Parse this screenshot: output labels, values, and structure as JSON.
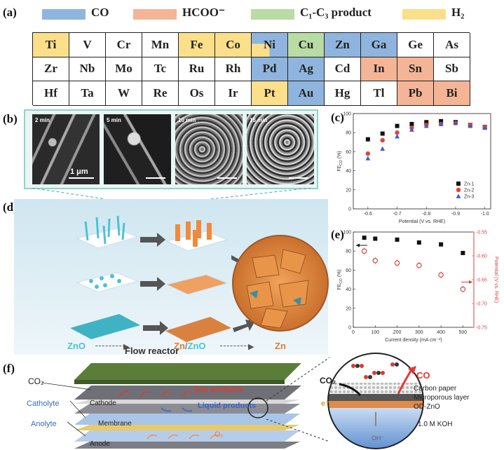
{
  "panels": {
    "a": "(a)",
    "b": "(b)",
    "c": "(c)",
    "d": "(d)",
    "e": "(e)",
    "f": "(f)"
  },
  "legend": [
    {
      "label": "CO",
      "color": "#8fb5de"
    },
    {
      "label": "HCOO⁻",
      "color": "#f4b596"
    },
    {
      "label": "C₁-C₃ product",
      "color": "#b9dba4"
    },
    {
      "label": "H₂",
      "color": "#fbdf8b"
    }
  ],
  "periodic_table": {
    "rows": [
      [
        {
          "el": "Ti",
          "c": "h2"
        },
        {
          "el": "V",
          "c": ""
        },
        {
          "el": "Cr",
          "c": ""
        },
        {
          "el": "Mn",
          "c": ""
        },
        {
          "el": "Fe",
          "c": "h2"
        },
        {
          "el": "Co",
          "c": "h2"
        },
        {
          "el": "Ni",
          "c": "co_h2"
        },
        {
          "el": "Cu",
          "c": "c1c3"
        },
        {
          "el": "Zn",
          "c": "co"
        },
        {
          "el": "Ga",
          "c": "co"
        },
        {
          "el": "Ge",
          "c": ""
        },
        {
          "el": "As",
          "c": ""
        }
      ],
      [
        {
          "el": "Zr",
          "c": ""
        },
        {
          "el": "Nb",
          "c": ""
        },
        {
          "el": "Mo",
          "c": ""
        },
        {
          "el": "Tc",
          "c": ""
        },
        {
          "el": "Ru",
          "c": ""
        },
        {
          "el": "Rh",
          "c": ""
        },
        {
          "el": "Pd",
          "c": "co"
        },
        {
          "el": "Ag",
          "c": "co"
        },
        {
          "el": "Cd",
          "c": ""
        },
        {
          "el": "In",
          "c": "hcoo"
        },
        {
          "el": "Sn",
          "c": "hcoo"
        },
        {
          "el": "Sb",
          "c": ""
        }
      ],
      [
        {
          "el": "Hf",
          "c": ""
        },
        {
          "el": "Ta",
          "c": ""
        },
        {
          "el": "W",
          "c": ""
        },
        {
          "el": "Re",
          "c": ""
        },
        {
          "el": "Os",
          "c": ""
        },
        {
          "el": "Ir",
          "c": ""
        },
        {
          "el": "Pt",
          "c": "h2"
        },
        {
          "el": "Au",
          "c": "co"
        },
        {
          "el": "Hg",
          "c": ""
        },
        {
          "el": "Tl",
          "c": ""
        },
        {
          "el": "Pb",
          "c": "hcoo"
        },
        {
          "el": "Bi",
          "c": "hcoo"
        }
      ]
    ]
  },
  "sem": {
    "times": [
      "2 min",
      "5 min",
      "10 min",
      "15 min"
    ],
    "scale": "1 μm"
  },
  "schematic_d": {
    "zno": "ZnO",
    "zn_zno_a": "Zn",
    "zn_zno_sep": "/",
    "zn_zno_b": "ZnO",
    "zn": "Zn"
  },
  "chart_data": [
    {
      "type": "scatter",
      "panel": "c",
      "xlabel": "Potential (V vs. RHE)",
      "ylabel": "FE",
      "ylabel_sub": "CO",
      "ylabel_unit": " (%)",
      "xlim": [
        -0.55,
        -1.02
      ],
      "ylim": [
        0,
        100
      ],
      "xticks": [
        -0.6,
        -0.7,
        -0.8,
        -0.9,
        -1.0
      ],
      "xtick_labels": [
        "-0.6",
        "-0.7",
        "-0.8",
        "-0.9",
        "-1.0"
      ],
      "yticks": [
        0,
        20,
        40,
        60,
        80,
        100
      ],
      "x": [
        -0.6,
        -0.65,
        -0.7,
        -0.75,
        -0.8,
        -0.85,
        -0.9,
        -0.95,
        -1.0
      ],
      "series": [
        {
          "name": "Zn-1",
          "color": "#111111",
          "marker": "square",
          "values": [
            73,
            79,
            87,
            89,
            91,
            92,
            91,
            88,
            86
          ]
        },
        {
          "name": "Zn-2",
          "color": "#e0443c",
          "marker": "circle",
          "values": [
            58,
            72,
            80,
            85,
            88,
            89,
            90,
            88,
            86
          ]
        },
        {
          "name": "Zn-3",
          "color": "#3a5fcd",
          "marker": "triangle",
          "values": [
            53,
            63,
            76,
            83,
            87,
            89,
            90,
            87,
            85
          ]
        }
      ],
      "legend_position": "bottom-right"
    },
    {
      "type": "scatter",
      "panel": "e",
      "xlabel": "Current density (mA cm⁻²)",
      "ylabel": "FE",
      "ylabel_sub": "CO",
      "ylabel_unit": " (%)",
      "y2label": "Potential (V vs. RHE)",
      "xlim": [
        0,
        550
      ],
      "ylim": [
        0,
        100
      ],
      "y2lim": [
        -0.75,
        -0.55
      ],
      "xticks": [
        0,
        100,
        200,
        300,
        400,
        500
      ],
      "yticks": [
        0,
        20,
        40,
        60,
        80,
        100
      ],
      "y2ticks": [
        -0.55,
        -0.6,
        -0.65,
        -0.7,
        -0.75
      ],
      "y2tick_labels": [
        "-0.55",
        "-0.60",
        "-0.65",
        "-0.70",
        "-0.75"
      ],
      "x": [
        50,
        100,
        200,
        300,
        400,
        500
      ],
      "series": [
        {
          "name": "FE_CO",
          "axis": "left",
          "color": "#111111",
          "marker": "square",
          "values": [
            94,
            93,
            92,
            89,
            87,
            78
          ]
        },
        {
          "name": "Potential",
          "axis": "right",
          "color": "#d9443c",
          "marker": "open-circle",
          "values": [
            -0.59,
            -0.61,
            -0.615,
            -0.62,
            -0.64,
            -0.67
          ]
        }
      ]
    }
  ],
  "reactor": {
    "title": "Flow reactor",
    "co2": "CO₂",
    "catholyte": "Catholyte",
    "anolyte": "Anolyte",
    "cathode": "Cathode",
    "membrane": "Membrane",
    "anode": "Anode",
    "gas_products": "Gas products",
    "liquid_products": "Liquid products",
    "o2": "O₂"
  },
  "zoom": {
    "co2": "CO₂",
    "co": "CO",
    "e": "e⁻",
    "oh": "OH⁻",
    "carbon_paper": "Carbon paper",
    "microporous": "Microporous layer",
    "odzno": "OD-ZnO",
    "koh": "1.0 M KOH"
  },
  "colors": {
    "co": "#8fb5de",
    "hcoo": "#f4b596",
    "c1c3": "#b9dba4",
    "h2": "#fbdf8b",
    "frame": "#8fd3cb"
  }
}
